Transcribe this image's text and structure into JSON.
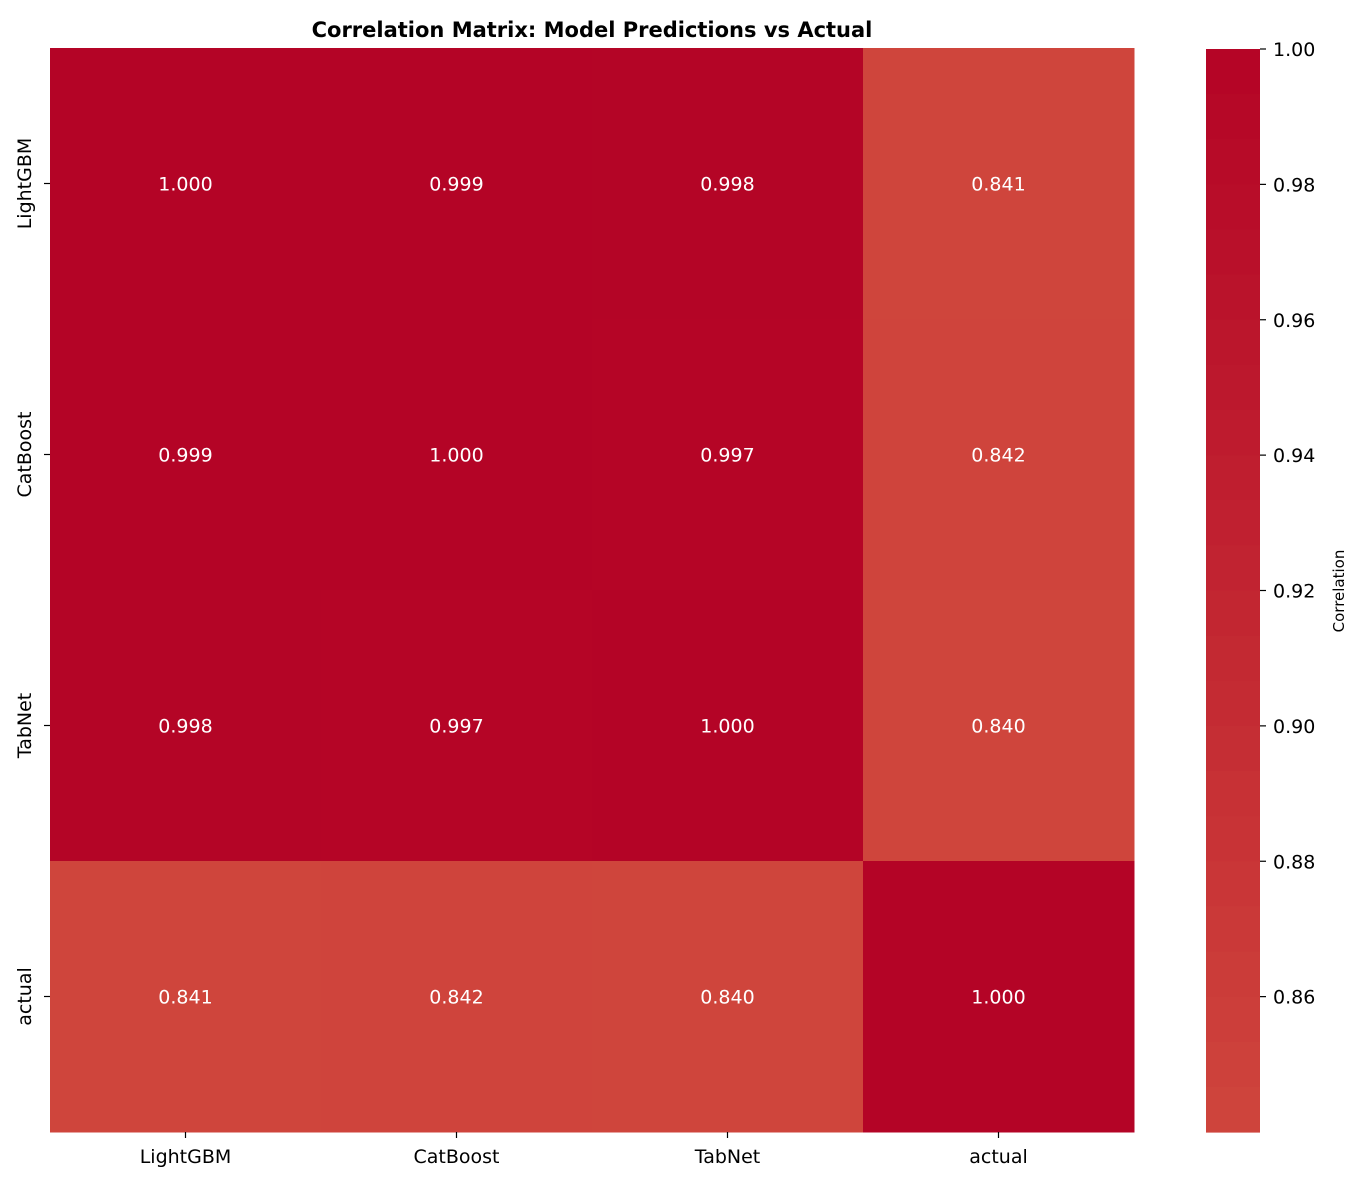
{
  "chart_data": {
    "type": "heatmap",
    "title": "Correlation Matrix: Model Predictions vs Actual",
    "xlabel": "",
    "ylabel": "",
    "rows": [
      "LightGBM",
      "CatBoost",
      "TabNet",
      "actual"
    ],
    "columns": [
      "LightGBM",
      "CatBoost",
      "TabNet",
      "actual"
    ],
    "values": [
      [
        1.0,
        0.999,
        0.998,
        0.841
      ],
      [
        0.999,
        1.0,
        0.997,
        0.842
      ],
      [
        0.998,
        0.997,
        1.0,
        0.84
      ],
      [
        0.841,
        0.842,
        0.84,
        1.0
      ]
    ],
    "value_labels": [
      [
        "1.000",
        "0.999",
        "0.998",
        "0.841"
      ],
      [
        "0.999",
        "1.000",
        "0.997",
        "0.842"
      ],
      [
        "0.998",
        "0.997",
        "1.000",
        "0.840"
      ],
      [
        "0.841",
        "0.842",
        "0.840",
        "1.000"
      ]
    ],
    "colorbar": {
      "label": "Correlation",
      "range": [
        0.84,
        1.0
      ],
      "ticks": [
        0.86,
        0.88,
        0.9,
        0.92,
        0.94,
        0.96,
        0.98,
        1.0
      ],
      "tick_labels": [
        "0.86",
        "0.88",
        "0.90",
        "0.92",
        "0.94",
        "0.96",
        "0.98",
        "1.00"
      ],
      "low_color": "#cf453c",
      "high_color": "#b40426"
    },
    "annotation_color": "#ffffff",
    "grid": false
  }
}
